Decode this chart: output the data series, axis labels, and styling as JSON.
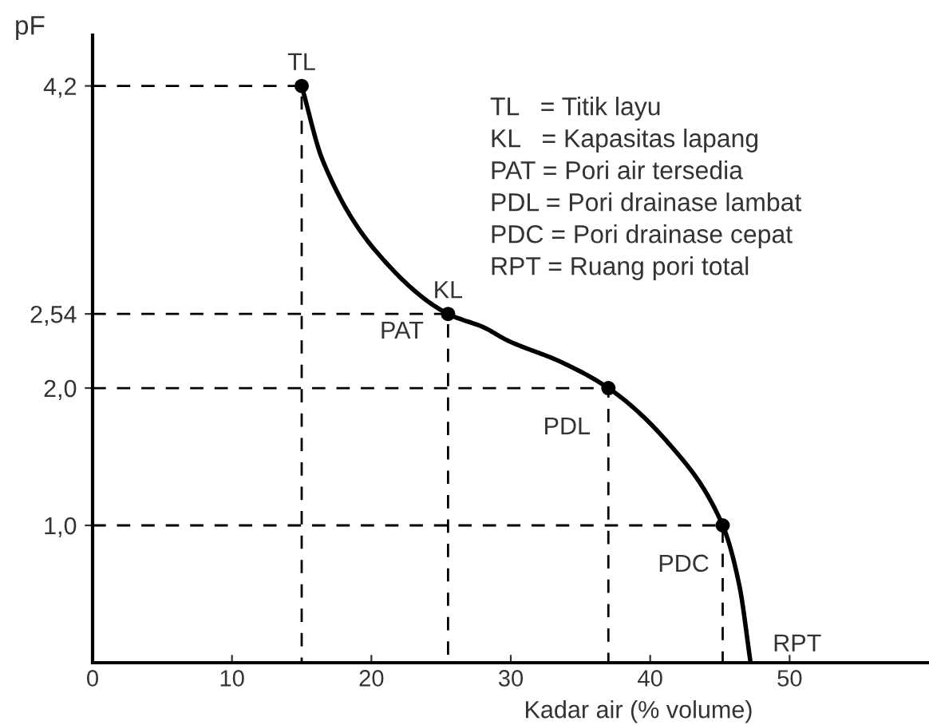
{
  "chart_data": {
    "type": "line",
    "xlabel": "Kadar air (% volume)",
    "ylabel": "pF",
    "xlim": [
      0,
      60
    ],
    "ylim": [
      0,
      4.57
    ],
    "xticks": [
      0,
      10,
      20,
      30,
      40,
      50
    ],
    "yticks": [
      {
        "value": 1.0,
        "label": "1,0"
      },
      {
        "value": 2.0,
        "label": "2,0"
      },
      {
        "value": 2.54,
        "label": "2,54"
      },
      {
        "value": 4.2,
        "label": "4,2"
      }
    ],
    "grid": false,
    "legend": false,
    "series": [
      {
        "color": "#000000",
        "line_style": "solid",
        "marker": "none",
        "x": [
          15,
          16.5,
          20.3,
          25.5,
          28.1,
          29.7,
          33.6,
          37,
          41.3,
          45.2,
          46.4,
          47.2
        ],
        "values": [
          4.2,
          3.66,
          3.0,
          2.54,
          2.44,
          2.35,
          2.19,
          2.0,
          1.6,
          1.0,
          0.56,
          0
        ]
      },
      {
        "type": "scatter",
        "color": "#000000",
        "marker": "circle",
        "x": [
          15,
          25.5,
          37,
          45.2
        ],
        "values": [
          4.2,
          2.54,
          2.0,
          1.0
        ]
      },
      {
        "type": "line",
        "color": "#000000",
        "line_style": "dashed",
        "marker": "none",
        "x": [
          0,
          15,
          15
        ],
        "values": [
          4.2,
          4.2,
          0
        ]
      },
      {
        "type": "line",
        "color": "#000000",
        "line_style": "dashed",
        "marker": "none",
        "x": [
          0,
          25.5,
          25.5
        ],
        "values": [
          2.54,
          2.54,
          0
        ]
      },
      {
        "type": "line",
        "color": "#000000",
        "line_style": "dashed",
        "marker": "none",
        "x": [
          0,
          37,
          37
        ],
        "values": [
          2.0,
          2.0,
          0
        ]
      },
      {
        "type": "line",
        "color": "#000000",
        "line_style": "dashed",
        "marker": "none",
        "x": [
          0,
          45.2,
          45.2
        ],
        "values": [
          1.0,
          1.0,
          0
        ]
      }
    ],
    "annotations": [
      {
        "text": "TL",
        "x": 15,
        "y": 4.2
      },
      {
        "text": "KL",
        "x": 25.5,
        "y": 2.54
      },
      {
        "text": "PDL",
        "x": 37,
        "y": 2.0
      },
      {
        "text": "PDC",
        "x": 45.2,
        "y": 1.0
      },
      {
        "text": "RPT",
        "x": 47.2,
        "y": 0
      },
      "PAT",
      "TL   = Titik layu",
      "KL   = Kapasitas lapang",
      "PAT = Pori air tersedia",
      "PDL = Pori drainase lambat",
      "PDC = Pori drainase cepat",
      "RPT = Ruang pori total"
    ]
  }
}
